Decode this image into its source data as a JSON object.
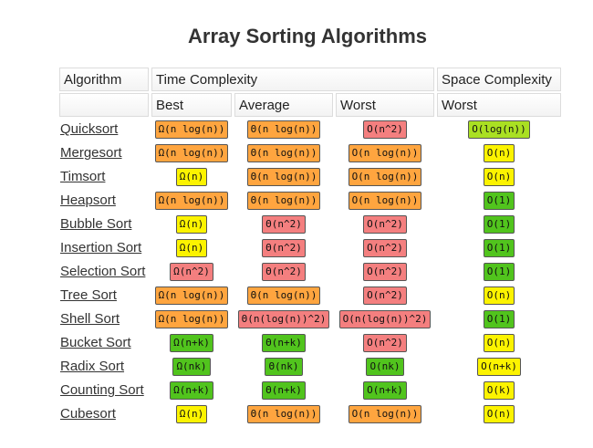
{
  "title": "Array Sorting Algorithms",
  "headers": {
    "algorithm": "Algorithm",
    "time": "Time Complexity",
    "space": "Space Complexity",
    "best": "Best",
    "average": "Average",
    "worst": "Worst",
    "space_worst": "Worst"
  },
  "colors": {
    "red": "#f47f7f",
    "orange": "#ffa53f",
    "yellow": "#fcf300",
    "lime": "#aae022",
    "green": "#51c41d"
  },
  "rows": [
    {
      "name": "Quicksort",
      "best": [
        "Ω(n log(n))",
        "orange"
      ],
      "average": [
        "Θ(n log(n))",
        "orange"
      ],
      "worst": [
        "O(n^2)",
        "red"
      ],
      "space": [
        "O(log(n))",
        "lime"
      ]
    },
    {
      "name": "Mergesort",
      "best": [
        "Ω(n log(n))",
        "orange"
      ],
      "average": [
        "Θ(n log(n))",
        "orange"
      ],
      "worst": [
        "O(n log(n))",
        "orange"
      ],
      "space": [
        "O(n)",
        "yellow"
      ]
    },
    {
      "name": "Timsort",
      "best": [
        "Ω(n)",
        "yellow"
      ],
      "average": [
        "Θ(n log(n))",
        "orange"
      ],
      "worst": [
        "O(n log(n))",
        "orange"
      ],
      "space": [
        "O(n)",
        "yellow"
      ]
    },
    {
      "name": "Heapsort",
      "best": [
        "Ω(n log(n))",
        "orange"
      ],
      "average": [
        "Θ(n log(n))",
        "orange"
      ],
      "worst": [
        "O(n log(n))",
        "orange"
      ],
      "space": [
        "O(1)",
        "green"
      ]
    },
    {
      "name": "Bubble Sort",
      "best": [
        "Ω(n)",
        "yellow"
      ],
      "average": [
        "Θ(n^2)",
        "red"
      ],
      "worst": [
        "O(n^2)",
        "red"
      ],
      "space": [
        "O(1)",
        "green"
      ]
    },
    {
      "name": "Insertion Sort",
      "best": [
        "Ω(n)",
        "yellow"
      ],
      "average": [
        "Θ(n^2)",
        "red"
      ],
      "worst": [
        "O(n^2)",
        "red"
      ],
      "space": [
        "O(1)",
        "green"
      ]
    },
    {
      "name": "Selection Sort",
      "best": [
        "Ω(n^2)",
        "red"
      ],
      "average": [
        "Θ(n^2)",
        "red"
      ],
      "worst": [
        "O(n^2)",
        "red"
      ],
      "space": [
        "O(1)",
        "green"
      ]
    },
    {
      "name": "Tree Sort",
      "best": [
        "Ω(n log(n))",
        "orange"
      ],
      "average": [
        "Θ(n log(n))",
        "orange"
      ],
      "worst": [
        "O(n^2)",
        "red"
      ],
      "space": [
        "O(n)",
        "yellow"
      ]
    },
    {
      "name": "Shell Sort",
      "best": [
        "Ω(n log(n))",
        "orange"
      ],
      "average": [
        "Θ(n(log(n))^2)",
        "red"
      ],
      "worst": [
        "O(n(log(n))^2)",
        "red"
      ],
      "space": [
        "O(1)",
        "green"
      ]
    },
    {
      "name": "Bucket Sort",
      "best": [
        "Ω(n+k)",
        "green"
      ],
      "average": [
        "Θ(n+k)",
        "green"
      ],
      "worst": [
        "O(n^2)",
        "red"
      ],
      "space": [
        "O(n)",
        "yellow"
      ]
    },
    {
      "name": "Radix Sort",
      "best": [
        "Ω(nk)",
        "green"
      ],
      "average": [
        "Θ(nk)",
        "green"
      ],
      "worst": [
        "O(nk)",
        "green"
      ],
      "space": [
        "O(n+k)",
        "yellow"
      ]
    },
    {
      "name": "Counting Sort",
      "best": [
        "Ω(n+k)",
        "green"
      ],
      "average": [
        "Θ(n+k)",
        "green"
      ],
      "worst": [
        "O(n+k)",
        "green"
      ],
      "space": [
        "O(k)",
        "yellow"
      ]
    },
    {
      "name": "Cubesort",
      "best": [
        "Ω(n)",
        "yellow"
      ],
      "average": [
        "Θ(n log(n))",
        "orange"
      ],
      "worst": [
        "O(n log(n))",
        "orange"
      ],
      "space": [
        "O(n)",
        "yellow"
      ]
    }
  ]
}
